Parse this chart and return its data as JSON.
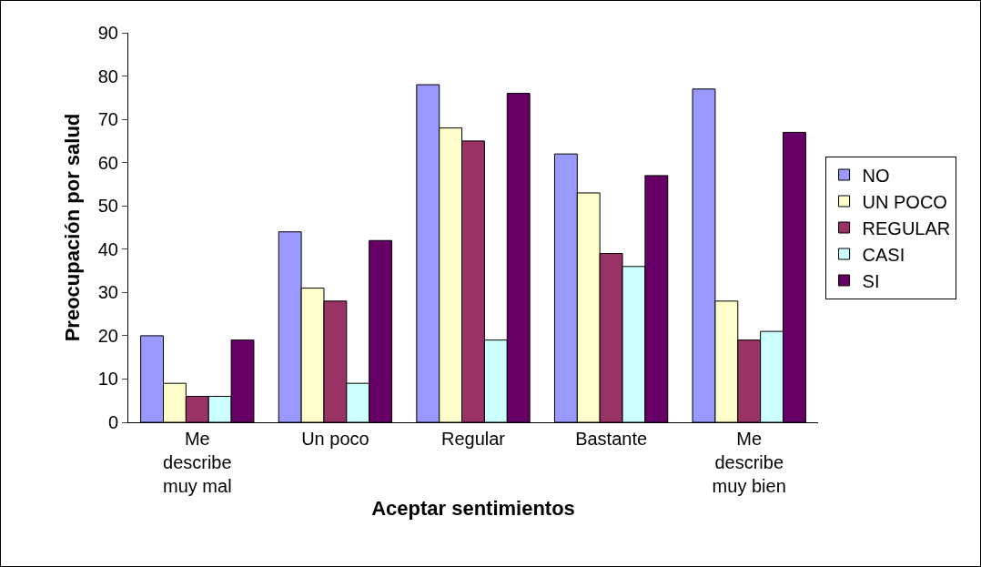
{
  "chart_data": {
    "type": "bar",
    "xlabel": "Aceptar sentimientos",
    "ylabel": "Preocupación por salud",
    "categories": [
      "Me\ndescribe\nmuy mal",
      "Un poco",
      "Regular",
      "Bastante",
      "Me\ndescribe\nmuy bien"
    ],
    "series": [
      {
        "name": "NO",
        "color": "#9999ff",
        "values": [
          20,
          44,
          78,
          62,
          77
        ]
      },
      {
        "name": "UN POCO",
        "color": "#ffffcc",
        "values": [
          9,
          31,
          68,
          53,
          28
        ]
      },
      {
        "name": "REGULAR",
        "color": "#993366",
        "values": [
          6,
          28,
          65,
          39,
          19
        ]
      },
      {
        "name": "CASI",
        "color": "#ccffff",
        "values": [
          6,
          9,
          19,
          36,
          21
        ]
      },
      {
        "name": "SI",
        "color": "#660066",
        "values": [
          19,
          42,
          76,
          57,
          67
        ]
      }
    ],
    "ylim": [
      0,
      90
    ],
    "yticks": [
      0,
      10,
      20,
      30,
      40,
      50,
      60,
      70,
      80,
      90
    ],
    "grid": false,
    "legend": "right"
  }
}
